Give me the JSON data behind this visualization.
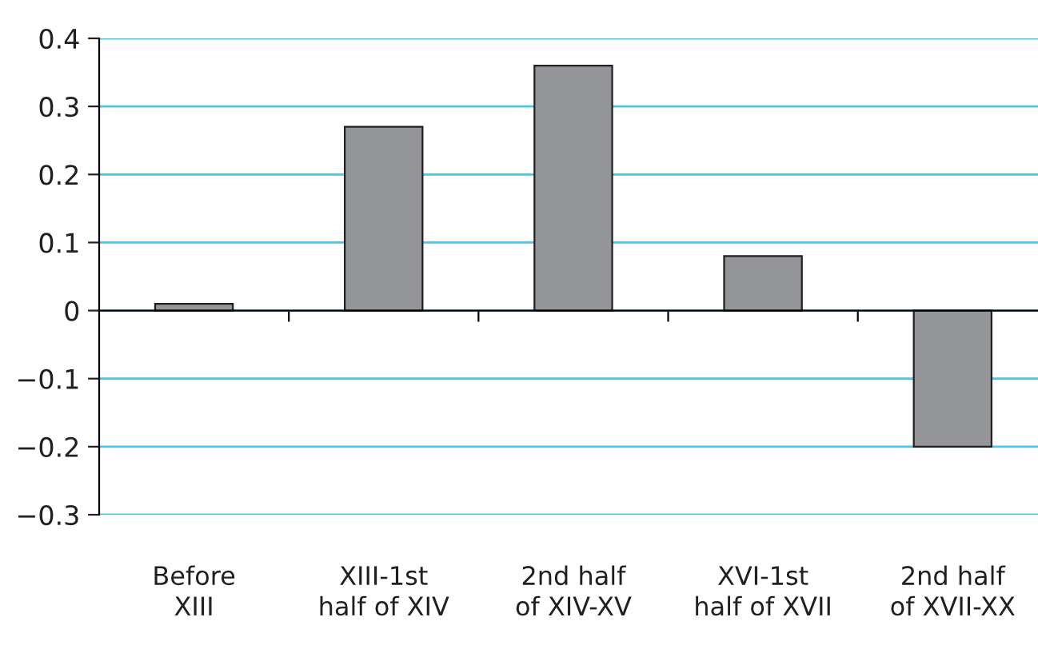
{
  "chart_data": {
    "type": "bar",
    "categories": [
      "Before\nXIII",
      "XIII-1st\nhalf of XIV",
      "2nd half\nof XIV-XV",
      "XVI-1st\nhalf of XVII",
      "2nd half\nof XVII-XX"
    ],
    "values": [
      0.01,
      0.27,
      0.36,
      0.08,
      -0.2
    ],
    "color": "#939598",
    "ylim": [
      -0.3,
      0.4
    ],
    "yticks": [
      {
        "value": -0.3,
        "label": "−0.3"
      },
      {
        "value": -0.2,
        "label": "−0.2"
      },
      {
        "value": -0.1,
        "label": "−0.1"
      },
      0,
      0.1,
      0.2,
      0.3,
      0.4
    ],
    "grid": "y",
    "legend": false
  }
}
